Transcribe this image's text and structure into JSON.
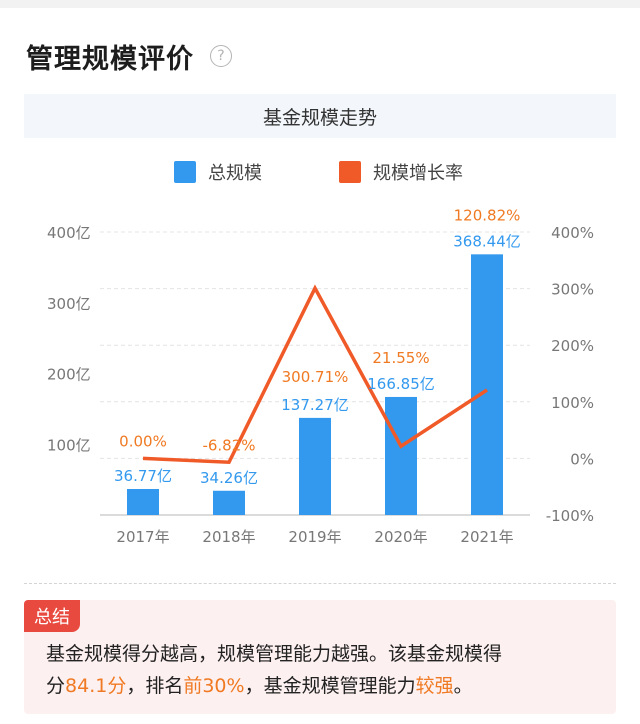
{
  "page": {
    "title": "管理规模评价",
    "help_icon": "question-circle-icon"
  },
  "chart_header": {
    "title": "基金规模走势"
  },
  "chart_data": {
    "type": "bar+line",
    "title": "基金规模走势",
    "categories": [
      "2017年",
      "2018年",
      "2019年",
      "2020年",
      "2021年"
    ],
    "series": [
      {
        "name": "总规模",
        "type": "bar",
        "axis": "left",
        "color": "#3399ee",
        "values": [
          36.77,
          34.26,
          137.27,
          166.85,
          368.44
        ],
        "labels": [
          "36.77亿",
          "34.26亿",
          "137.27亿",
          "166.85亿",
          "368.44亿"
        ]
      },
      {
        "name": "规模增长率",
        "type": "line",
        "axis": "right",
        "color": "#f05a28",
        "values": [
          0.0,
          -6.82,
          300.71,
          21.55,
          120.82
        ],
        "labels": [
          "0.00%",
          "-6.82%",
          "300.71%",
          "21.55%",
          "120.82%"
        ]
      }
    ],
    "y_left": {
      "ticks": [
        100,
        200,
        300,
        400
      ],
      "tick_labels": [
        "100亿",
        "200亿",
        "300亿",
        "400亿"
      ],
      "range": [
        0,
        400
      ]
    },
    "y_right": {
      "ticks": [
        -100,
        0,
        100,
        200,
        300,
        400
      ],
      "tick_labels": [
        "-100%",
        "0%",
        "100%",
        "200%",
        "300%",
        "400%"
      ],
      "range": [
        -100,
        400
      ]
    },
    "grid": true,
    "legend_position": "top"
  },
  "colors": {
    "bar": "#3399ee",
    "line": "#f05a28",
    "bar_label": "#3399ee",
    "line_label": "#f07a23",
    "summary_tag": "#e94a3f",
    "summary_bg": "#fdf0f0",
    "highlight": "#f07a23"
  },
  "summary": {
    "tag": "总结",
    "line1": "基金规模得分越高，规模管理能力越强。该基金规模得",
    "part1": "分",
    "score": "84.1分",
    "part2": "，排名",
    "rank": "前30%",
    "part3": "，基金规模管理能力",
    "level": "较强",
    "part4": "。"
  }
}
